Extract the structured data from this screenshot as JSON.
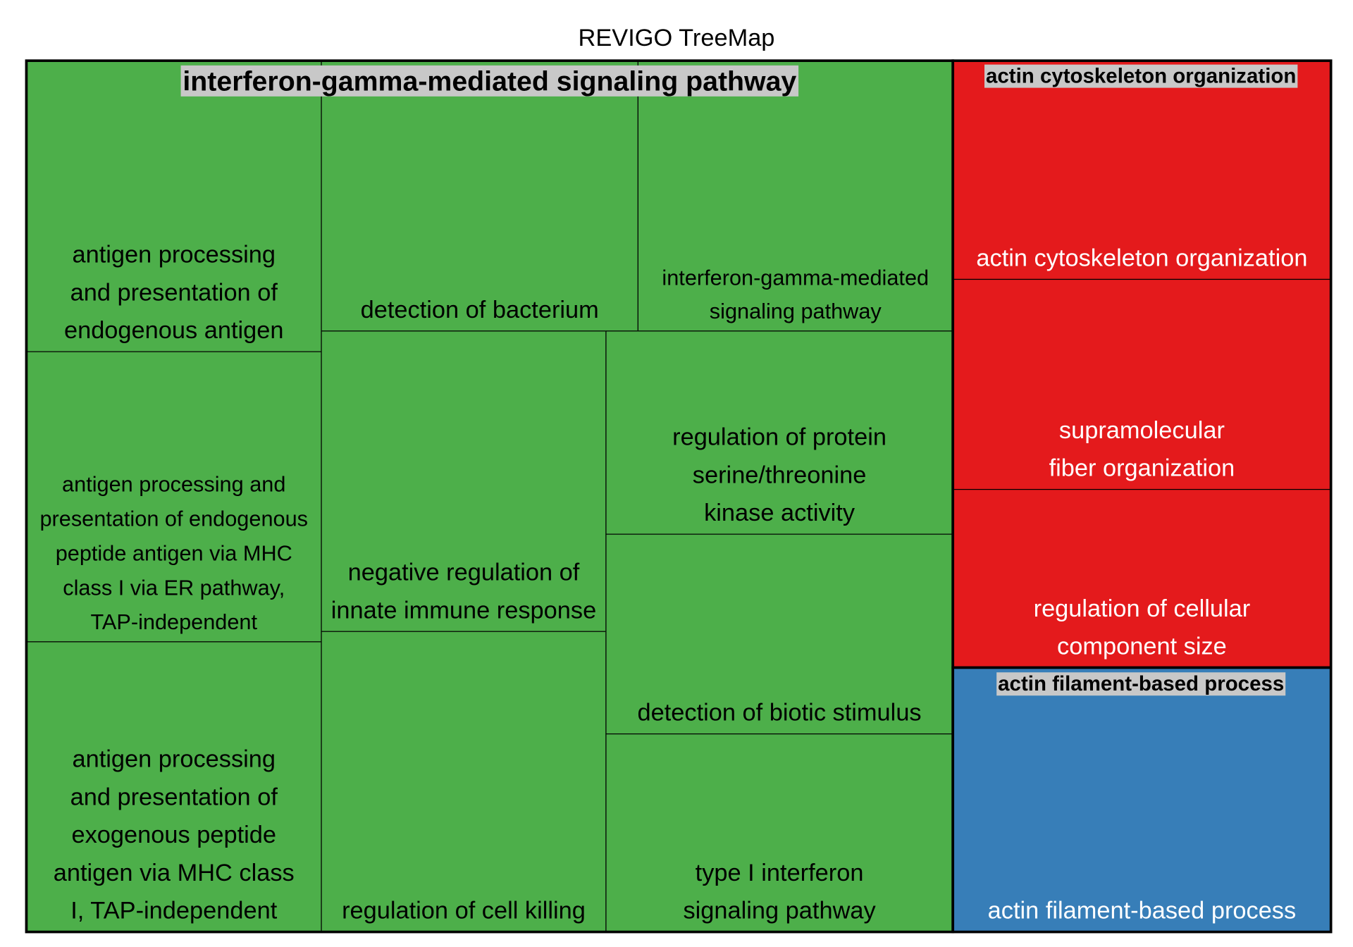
{
  "chart_data": {
    "type": "treemap",
    "title": "REVIGO TreeMap",
    "groups": [
      {
        "name": "interferon-gamma-mediated signaling pathway",
        "color": "#4daf4a",
        "text_color": "#000000",
        "items": [
          [
            "antigen processing",
            "and presentation of",
            "endogenous antigen"
          ],
          [
            "antigen processing and",
            "presentation of endogenous",
            "peptide antigen via MHC",
            "class I via ER pathway,",
            "TAP-independent"
          ],
          [
            "antigen processing",
            "and presentation of",
            "exogenous peptide",
            "antigen via MHC class",
            "I, TAP-independent"
          ],
          [
            "detection of bacterium"
          ],
          [
            "interferon-gamma-mediated",
            "signaling pathway"
          ],
          [
            "negative regulation of",
            "innate immune response"
          ],
          [
            "regulation of cell killing"
          ],
          [
            "regulation of protein",
            "serine/threonine",
            "kinase activity"
          ],
          [
            "detection of biotic stimulus"
          ],
          [
            "type I interferon",
            "signaling pathway"
          ]
        ]
      },
      {
        "name": "actin cytoskeleton organization",
        "color": "#e41a1c",
        "text_color": "#ffffff",
        "items": [
          [
            "actin cytoskeleton organization"
          ],
          [
            "supramolecular",
            "fiber organization"
          ],
          [
            "regulation of cellular",
            "component size"
          ]
        ]
      },
      {
        "name": "actin filament-based process",
        "color": "#377eb8",
        "text_color": "#ffffff",
        "items": [
          [
            "actin filament-based process"
          ]
        ]
      }
    ]
  }
}
